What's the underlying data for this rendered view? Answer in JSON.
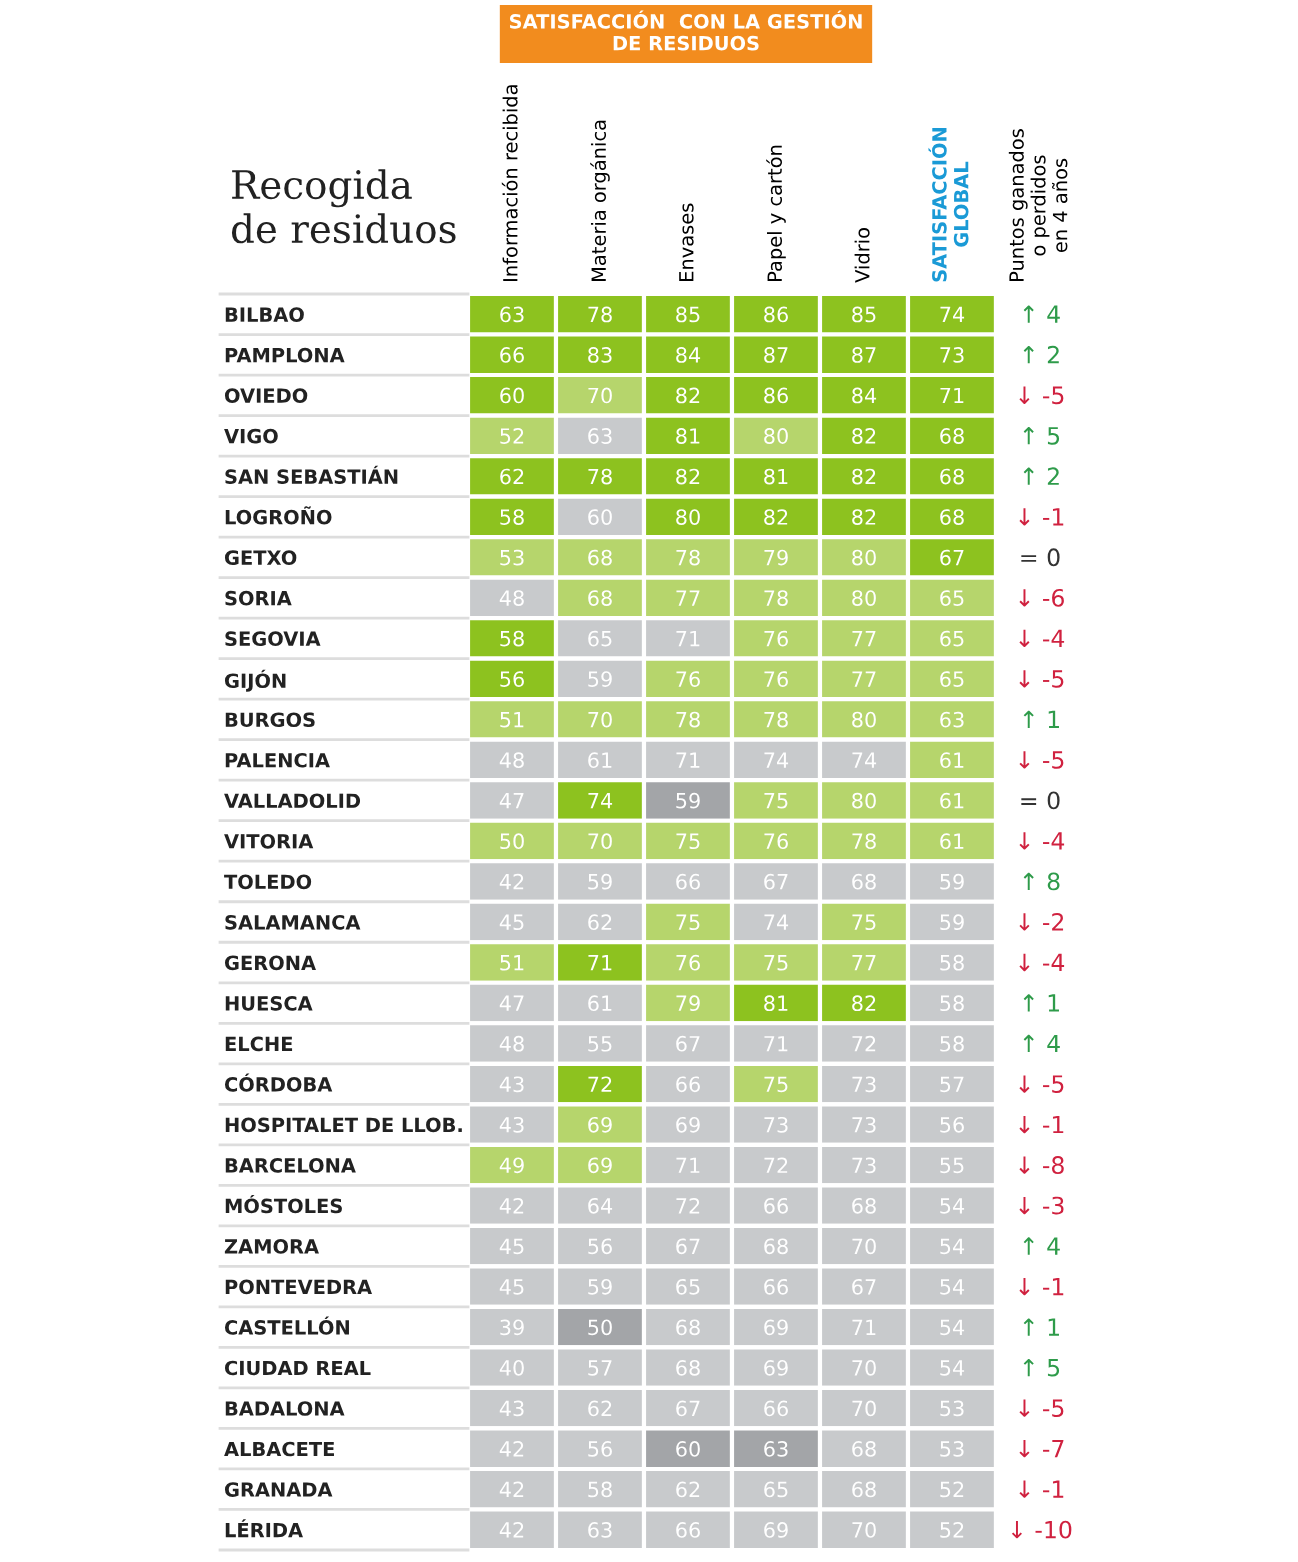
{
  "chart_data": {
    "type": "heatmap",
    "title": "Recogida\nde residuos",
    "annotations": [
      "SATISFACCIÓN  CON LA GESTIÓN\nDE RESIDUOS"
    ],
    "categories": [
      "Información recibida",
      "Materia orgánica",
      "Envases",
      "Papel y cartón",
      "Vidrio",
      "SATISFACCIÓN\nGLOBAL",
      "Puntos ganados\no perdidos\nen 4 años"
    ],
    "y_categories": [
      "BILBAO",
      "PAMPLONA",
      "OVIEDO",
      "VIGO",
      "SAN SEBASTIÁN",
      "LOGROÑO",
      "GETXO",
      "SORIA",
      "SEGOVIA",
      "GIJÓN",
      "BURGOS",
      "PALENCIA",
      "VALLADOLID",
      "VITORIA",
      "TOLEDO",
      "SALAMANCA",
      "GERONA",
      "HUESCA",
      "ELCHE",
      "CÓRDOBA",
      "HOSPITALET DE LLOB.",
      "BARCELONA",
      "MÓSTOLES",
      "ZAMORA",
      "PONTEVEDRA",
      "CASTELLÓN",
      "CIUDAD REAL",
      "BADALONA",
      "ALBACETE",
      "GRANADA",
      "LÉRIDA"
    ],
    "cells": [
      [
        63,
        78,
        85,
        86,
        85,
        74,
        4
      ],
      [
        66,
        83,
        84,
        87,
        87,
        73,
        2
      ],
      [
        60,
        70,
        82,
        86,
        84,
        71,
        -5
      ],
      [
        52,
        63,
        81,
        80,
        82,
        68,
        5
      ],
      [
        62,
        78,
        82,
        81,
        82,
        68,
        2
      ],
      [
        58,
        60,
        80,
        82,
        82,
        68,
        -1
      ],
      [
        53,
        68,
        78,
        79,
        80,
        67,
        0
      ],
      [
        48,
        68,
        77,
        78,
        80,
        65,
        -6
      ],
      [
        58,
        65,
        71,
        76,
        77,
        65,
        -4
      ],
      [
        56,
        59,
        76,
        76,
        77,
        65,
        -5
      ],
      [
        51,
        70,
        78,
        78,
        80,
        63,
        1
      ],
      [
        48,
        61,
        71,
        74,
        74,
        61,
        -5
      ],
      [
        47,
        74,
        59,
        75,
        80,
        61,
        0
      ],
      [
        50,
        70,
        75,
        76,
        78,
        61,
        -4
      ],
      [
        42,
        59,
        66,
        67,
        68,
        59,
        8
      ],
      [
        45,
        62,
        75,
        74,
        75,
        59,
        -2
      ],
      [
        51,
        71,
        76,
        75,
        77,
        58,
        -4
      ],
      [
        47,
        61,
        79,
        81,
        82,
        58,
        1
      ],
      [
        48,
        55,
        67,
        71,
        72,
        58,
        4
      ],
      [
        43,
        72,
        66,
        75,
        73,
        57,
        -5
      ],
      [
        43,
        69,
        69,
        73,
        73,
        56,
        -1
      ],
      [
        49,
        69,
        71,
        72,
        73,
        55,
        -8
      ],
      [
        42,
        64,
        72,
        66,
        68,
        54,
        -3
      ],
      [
        45,
        56,
        67,
        68,
        70,
        54,
        4
      ],
      [
        45,
        59,
        65,
        66,
        67,
        54,
        -1
      ],
      [
        39,
        50,
        68,
        69,
        71,
        54,
        1
      ],
      [
        40,
        57,
        68,
        69,
        70,
        54,
        5
      ],
      [
        43,
        62,
        67,
        66,
        70,
        53,
        -5
      ],
      [
        42,
        56,
        60,
        63,
        68,
        53,
        -7
      ],
      [
        42,
        58,
        62,
        65,
        68,
        52,
        -1
      ],
      [
        42,
        63,
        66,
        69,
        70,
        52,
        -10
      ]
    ],
    "cell_labels": [
      [
        "63",
        "78",
        "85",
        "86",
        "85",
        "74",
        "↑ 4"
      ],
      [
        "66",
        "83",
        "84",
        "87",
        "87",
        "73",
        "↑ 2"
      ],
      [
        "60",
        "70",
        "82",
        "86",
        "84",
        "71",
        "↓ -5"
      ],
      [
        "52",
        "63",
        "81",
        "80",
        "82",
        "68",
        "↑ 5"
      ],
      [
        "62",
        "78",
        "82",
        "81",
        "82",
        "68",
        "↑ 2"
      ],
      [
        "58",
        "60",
        "80",
        "82",
        "82",
        "68",
        "↓ -1"
      ],
      [
        "53",
        "68",
        "78",
        "79",
        "80",
        "67",
        "= 0"
      ],
      [
        "48",
        "68",
        "77",
        "78",
        "80",
        "65",
        "↓ -6"
      ],
      [
        "58",
        "65",
        "71",
        "76",
        "77",
        "65",
        "↓ -4"
      ],
      [
        "56",
        "59",
        "76",
        "76",
        "77",
        "65",
        "↓ -5"
      ],
      [
        "51",
        "70",
        "78",
        "78",
        "80",
        "63",
        "↑ 1"
      ],
      [
        "48",
        "61",
        "71",
        "74",
        "74",
        "61",
        "↓ -5"
      ],
      [
        "47",
        "74",
        "59",
        "75",
        "80",
        "61",
        "= 0"
      ],
      [
        "50",
        "70",
        "75",
        "76",
        "78",
        "61",
        "↓ -4"
      ],
      [
        "42",
        "59",
        "66",
        "67",
        "68",
        "59",
        "↑ 8"
      ],
      [
        "45",
        "62",
        "75",
        "74",
        "75",
        "59",
        "↓ -2"
      ],
      [
        "51",
        "71",
        "76",
        "75",
        "77",
        "58",
        "↓ -4"
      ],
      [
        "47",
        "61",
        "79",
        "81",
        "82",
        "58",
        "↑ 1"
      ],
      [
        "48",
        "55",
        "67",
        "71",
        "72",
        "58",
        "↑ 4"
      ],
      [
        "43",
        "72",
        "66",
        "75",
        "73",
        "57",
        "↓ -5"
      ],
      [
        "43",
        "69",
        "69",
        "73",
        "73",
        "56",
        "↓ -1"
      ],
      [
        "49",
        "69",
        "71",
        "72",
        "73",
        "55",
        "↓ -8"
      ],
      [
        "42",
        "64",
        "72",
        "66",
        "68",
        "54",
        "↓ -3"
      ],
      [
        "45",
        "56",
        "67",
        "68",
        "70",
        "54",
        "↑ 4"
      ],
      [
        "45",
        "59",
        "65",
        "66",
        "67",
        "54",
        "↓ -1"
      ],
      [
        "39",
        "50",
        "68",
        "69",
        "71",
        "54",
        "↑ 1"
      ],
      [
        "40",
        "57",
        "68",
        "69",
        "70",
        "54",
        "↑ 5"
      ],
      [
        "43",
        "62",
        "67",
        "66",
        "70",
        "53",
        "↓ -5"
      ],
      [
        "42",
        "56",
        "60",
        "63",
        "68",
        "53",
        "↓ -7"
      ],
      [
        "42",
        "58",
        "62",
        "65",
        "68",
        "52",
        "↓ -1"
      ],
      [
        "42",
        "63",
        "66",
        "69",
        "70",
        "52",
        "↓ -10"
      ]
    ],
    "colors": [
      [
        "#8dc21f",
        "#8dc21f",
        "#8dc21f",
        "#8dc21f",
        "#8dc21f",
        "#8dc21f",
        "#ffffff"
      ],
      [
        "#8dc21f",
        "#8dc21f",
        "#8dc21f",
        "#8dc21f",
        "#8dc21f",
        "#8dc21f",
        "#ffffff"
      ],
      [
        "#8dc21f",
        "#b6d56c",
        "#8dc21f",
        "#8dc21f",
        "#8dc21f",
        "#8dc21f",
        "#ffffff"
      ],
      [
        "#b6d56c",
        "#c8cacc",
        "#8dc21f",
        "#b6d56c",
        "#8dc21f",
        "#8dc21f",
        "#ffffff"
      ],
      [
        "#8dc21f",
        "#8dc21f",
        "#8dc21f",
        "#8dc21f",
        "#8dc21f",
        "#8dc21f",
        "#ffffff"
      ],
      [
        "#8dc21f",
        "#c8cacc",
        "#8dc21f",
        "#8dc21f",
        "#8dc21f",
        "#8dc21f",
        "#ffffff"
      ],
      [
        "#b6d56c",
        "#b6d56c",
        "#b6d56c",
        "#b6d56c",
        "#b6d56c",
        "#8dc21f",
        "#ffffff"
      ],
      [
        "#c8cacc",
        "#b6d56c",
        "#b6d56c",
        "#b6d56c",
        "#b6d56c",
        "#b6d56c",
        "#ffffff"
      ],
      [
        "#8dc21f",
        "#c8cacc",
        "#c8cacc",
        "#b6d56c",
        "#b6d56c",
        "#b6d56c",
        "#ffffff"
      ],
      [
        "#8dc21f",
        "#c8cacc",
        "#b6d56c",
        "#b6d56c",
        "#b6d56c",
        "#b6d56c",
        "#ffffff"
      ],
      [
        "#b6d56c",
        "#b6d56c",
        "#b6d56c",
        "#b6d56c",
        "#b6d56c",
        "#b6d56c",
        "#ffffff"
      ],
      [
        "#c8cacc",
        "#c8cacc",
        "#c8cacc",
        "#c8cacc",
        "#c8cacc",
        "#b6d56c",
        "#ffffff"
      ],
      [
        "#c8cacc",
        "#8dc21f",
        "#a3a5a8",
        "#b6d56c",
        "#b6d56c",
        "#b6d56c",
        "#ffffff"
      ],
      [
        "#b6d56c",
        "#b6d56c",
        "#b6d56c",
        "#b6d56c",
        "#b6d56c",
        "#b6d56c",
        "#ffffff"
      ],
      [
        "#c8cacc",
        "#c8cacc",
        "#c8cacc",
        "#c8cacc",
        "#c8cacc",
        "#c8cacc",
        "#ffffff"
      ],
      [
        "#c8cacc",
        "#c8cacc",
        "#b6d56c",
        "#c8cacc",
        "#b6d56c",
        "#c8cacc",
        "#ffffff"
      ],
      [
        "#b6d56c",
        "#8dc21f",
        "#b6d56c",
        "#b6d56c",
        "#b6d56c",
        "#c8cacc",
        "#ffffff"
      ],
      [
        "#c8cacc",
        "#c8cacc",
        "#b6d56c",
        "#8dc21f",
        "#8dc21f",
        "#c8cacc",
        "#ffffff"
      ],
      [
        "#c8cacc",
        "#c8cacc",
        "#c8cacc",
        "#c8cacc",
        "#c8cacc",
        "#c8cacc",
        "#ffffff"
      ],
      [
        "#c8cacc",
        "#8dc21f",
        "#c8cacc",
        "#b6d56c",
        "#c8cacc",
        "#c8cacc",
        "#ffffff"
      ],
      [
        "#c8cacc",
        "#b6d56c",
        "#c8cacc",
        "#c8cacc",
        "#c8cacc",
        "#c8cacc",
        "#ffffff"
      ],
      [
        "#b6d56c",
        "#b6d56c",
        "#c8cacc",
        "#c8cacc",
        "#c8cacc",
        "#c8cacc",
        "#ffffff"
      ],
      [
        "#c8cacc",
        "#c8cacc",
        "#c8cacc",
        "#c8cacc",
        "#c8cacc",
        "#c8cacc",
        "#ffffff"
      ],
      [
        "#c8cacc",
        "#c8cacc",
        "#c8cacc",
        "#c8cacc",
        "#c8cacc",
        "#c8cacc",
        "#ffffff"
      ],
      [
        "#c8cacc",
        "#c8cacc",
        "#c8cacc",
        "#c8cacc",
        "#c8cacc",
        "#c8cacc",
        "#ffffff"
      ],
      [
        "#c8cacc",
        "#a3a5a8",
        "#c8cacc",
        "#c8cacc",
        "#c8cacc",
        "#c8cacc",
        "#ffffff"
      ],
      [
        "#c8cacc",
        "#c8cacc",
        "#c8cacc",
        "#c8cacc",
        "#c8cacc",
        "#c8cacc",
        "#ffffff"
      ],
      [
        "#c8cacc",
        "#c8cacc",
        "#c8cacc",
        "#c8cacc",
        "#c8cacc",
        "#c8cacc",
        "#ffffff"
      ],
      [
        "#c8cacc",
        "#c8cacc",
        "#a3a5a8",
        "#a3a5a8",
        "#c8cacc",
        "#c8cacc",
        "#ffffff"
      ],
      [
        "#c8cacc",
        "#c8cacc",
        "#c8cacc",
        "#c8cacc",
        "#c8cacc",
        "#c8cacc",
        "#ffffff"
      ],
      [
        "#c8cacc",
        "#c8cacc",
        "#c8cacc",
        "#c8cacc",
        "#c8cacc",
        "#c8cacc",
        "#ffffff"
      ]
    ]
  }
}
